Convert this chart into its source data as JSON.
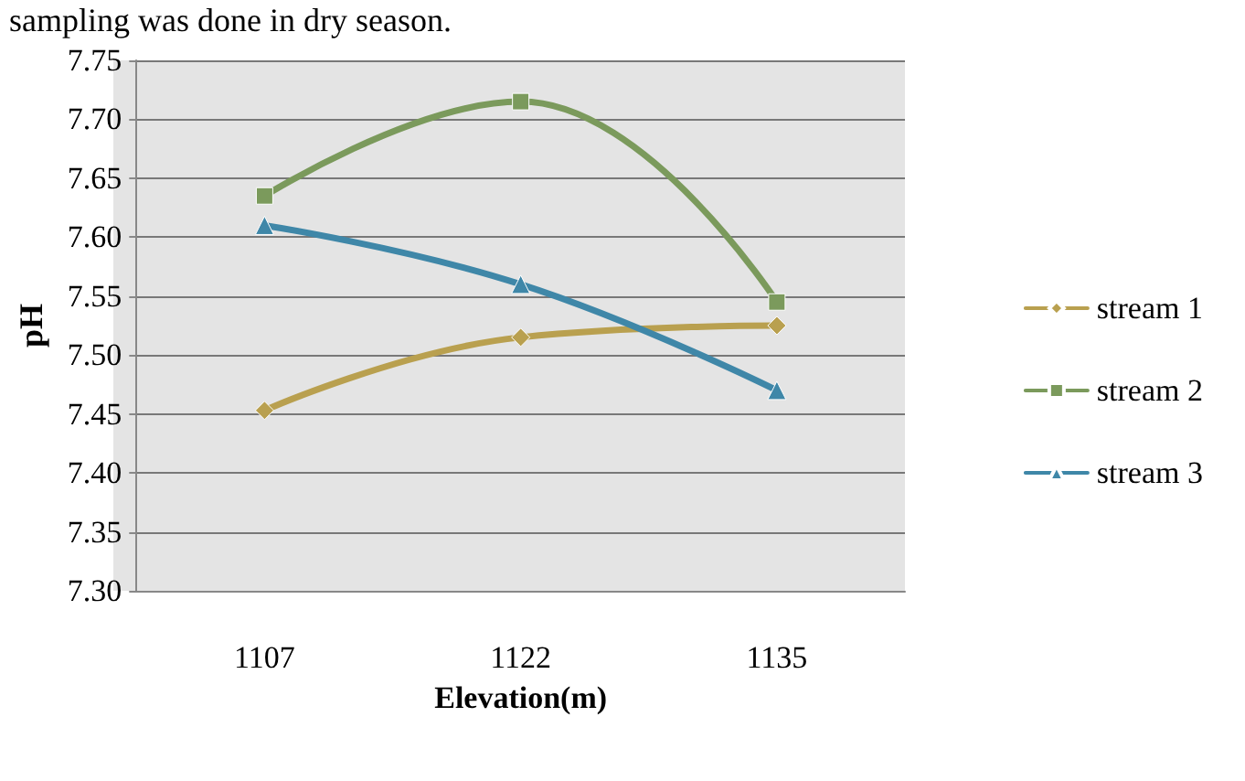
{
  "chart_data": {
    "type": "line",
    "xlabel": "Elevation(m)",
    "ylabel": "pH",
    "annotations": [
      "sampling was done in dry season."
    ],
    "categories": [
      "1107",
      "1122",
      "1135"
    ],
    "series": [
      {
        "name": "stream 1",
        "color": "#b9a04f",
        "marker": "diamond",
        "values": [
          7.453,
          7.515,
          7.525
        ]
      },
      {
        "name": "stream 2",
        "color": "#7b9a5c",
        "marker": "square",
        "values": [
          7.635,
          7.715,
          7.545
        ]
      },
      {
        "name": "stream 3",
        "color": "#3f87a8",
        "marker": "triangle",
        "values": [
          7.61,
          7.56,
          7.47
        ]
      }
    ],
    "ylim": [
      7.3,
      7.75
    ],
    "yticks": [
      {
        "value": 7.3,
        "label": "7.30"
      },
      {
        "value": 7.35,
        "label": "7.35"
      },
      {
        "value": 7.4,
        "label": "7.40"
      },
      {
        "value": 7.45,
        "label": "7.45"
      },
      {
        "value": 7.5,
        "label": "7.50"
      },
      {
        "value": 7.55,
        "label": "7.55"
      },
      {
        "value": 7.6,
        "label": "7.60"
      },
      {
        "value": 7.65,
        "label": "7.65"
      },
      {
        "value": 7.7,
        "label": "7.70"
      },
      {
        "value": 7.75,
        "label": "7.75"
      }
    ],
    "grid": "y",
    "legend": "right"
  }
}
